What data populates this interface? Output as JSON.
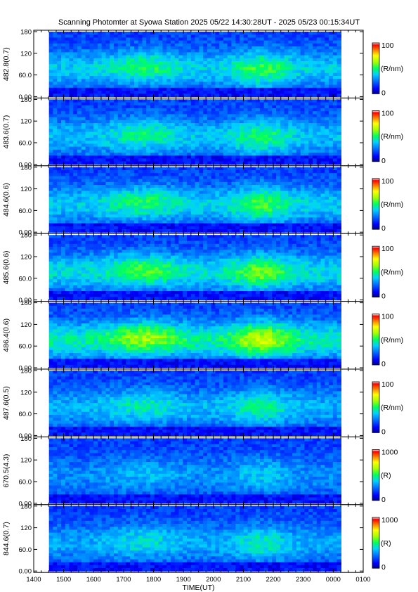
{
  "chart_data": {
    "type": "heatmap",
    "title": "Scanning Photomter at Syowa Station 2025 05/22 14:30:28UT - 2025 05/23 00:15:34UT",
    "xlabel": "TIME(UT)",
    "x_ticks": [
      "1400",
      "1500",
      "1600",
      "1700",
      "1800",
      "1900",
      "2000",
      "2100",
      "2200",
      "2300",
      "0000",
      "0100"
    ],
    "x_range_hours": [
      14,
      25
    ],
    "data_time_range_hours": [
      14.508,
      24.259
    ],
    "y_ticks": [
      "0.00",
      "60.0",
      "120",
      "180"
    ],
    "ylim": [
      0,
      180
    ],
    "panels": [
      {
        "ylabel": "482.8(0.7)",
        "colorbar_max": "100",
        "colorbar_mid": "(R/nm)",
        "colorbar_min": "0",
        "intensity": 0.55
      },
      {
        "ylabel": "483.6(0.7)",
        "colorbar_max": "100",
        "colorbar_mid": "(R/nm)",
        "colorbar_min": "0",
        "intensity": 0.5
      },
      {
        "ylabel": "484.6(0.6)",
        "colorbar_max": "100",
        "colorbar_mid": "(R/nm)",
        "colorbar_min": "0",
        "intensity": 0.55
      },
      {
        "ylabel": "485.6(0.6)",
        "colorbar_max": "100",
        "colorbar_mid": "(R/nm)",
        "colorbar_min": "0",
        "intensity": 0.62
      },
      {
        "ylabel": "486.4(0.6)",
        "colorbar_max": "100",
        "colorbar_mid": "(R/nm)",
        "colorbar_min": "0",
        "intensity": 0.75
      },
      {
        "ylabel": "487.6(0.5)",
        "colorbar_max": "100",
        "colorbar_mid": "(R/nm)",
        "colorbar_min": "0",
        "intensity": 0.45
      },
      {
        "ylabel": "670.5(4.3)",
        "colorbar_max": "1000",
        "colorbar_mid": "(R)",
        "colorbar_min": "0",
        "intensity": 0.3
      },
      {
        "ylabel": "844.6(0.7)",
        "colorbar_max": "1000",
        "colorbar_mid": "(R)",
        "colorbar_min": "0",
        "intensity": 0.4
      }
    ],
    "colormap": [
      "#00008f",
      "#0000ff",
      "#0060ff",
      "#00c0ff",
      "#00ff80",
      "#80ff00",
      "#ffff00",
      "#ff8000",
      "#ff0000",
      "#ffffff"
    ],
    "grid": false,
    "legend": "colorbars-right"
  }
}
